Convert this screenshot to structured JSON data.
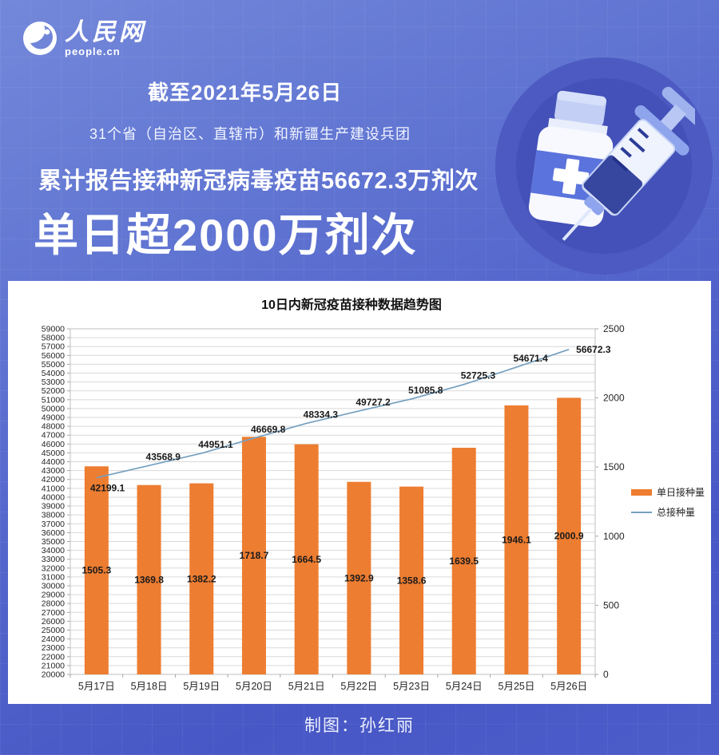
{
  "header": {
    "logo": {
      "brand_cn": "人民网",
      "brand_en": "people.cn"
    },
    "date_line": "截至2021年5月26日",
    "scope_line": "31个省（自治区、直辖市）和新疆生产建设兵团",
    "cumulative_line": "累计报告接种新冠病毒疫苗56672.3万剂次",
    "headline": "单日超2000万剂次"
  },
  "chart_data": {
    "type": "bar",
    "subtype": "combo-bar-line",
    "title": "10日内新冠疫苗接种数据趋势图",
    "categories": [
      "5月17日",
      "5月18日",
      "5月19日",
      "5月20日",
      "5月21日",
      "5月22日",
      "5月23日",
      "5月24日",
      "5月25日",
      "5月26日"
    ],
    "series": [
      {
        "name": "单日接种量",
        "type": "bar",
        "axis": "right",
        "color": "#ED7D31",
        "values": [
          1505.3,
          1369.8,
          1382.2,
          1718.7,
          1664.5,
          1392.9,
          1358.6,
          1639.5,
          1946.1,
          2000.9
        ]
      },
      {
        "name": "总接种量",
        "type": "line",
        "axis": "left",
        "color": "#75A0C0",
        "values": [
          42199.1,
          43568.9,
          44951.1,
          46669.8,
          48334.3,
          49727.2,
          51085.8,
          52725.3,
          54671.4,
          56672.3
        ]
      }
    ],
    "left_axis": {
      "min": 20000,
      "max": 59000,
      "step": 1000
    },
    "right_axis": {
      "min": 0,
      "max": 2500,
      "step": 500
    },
    "grid": true,
    "legend_position": "right"
  },
  "footer": {
    "credit": "制图：孙红丽"
  },
  "colors": {
    "background_top": "#7488da",
    "background_bottom": "#4c5cc9",
    "decor_circle_outer": "#4c5ac1",
    "decor_circle_inner": "#4351b8",
    "bar_accent": "#ED7D31",
    "line_accent": "#75A0C0",
    "panel": "#ffffff"
  }
}
